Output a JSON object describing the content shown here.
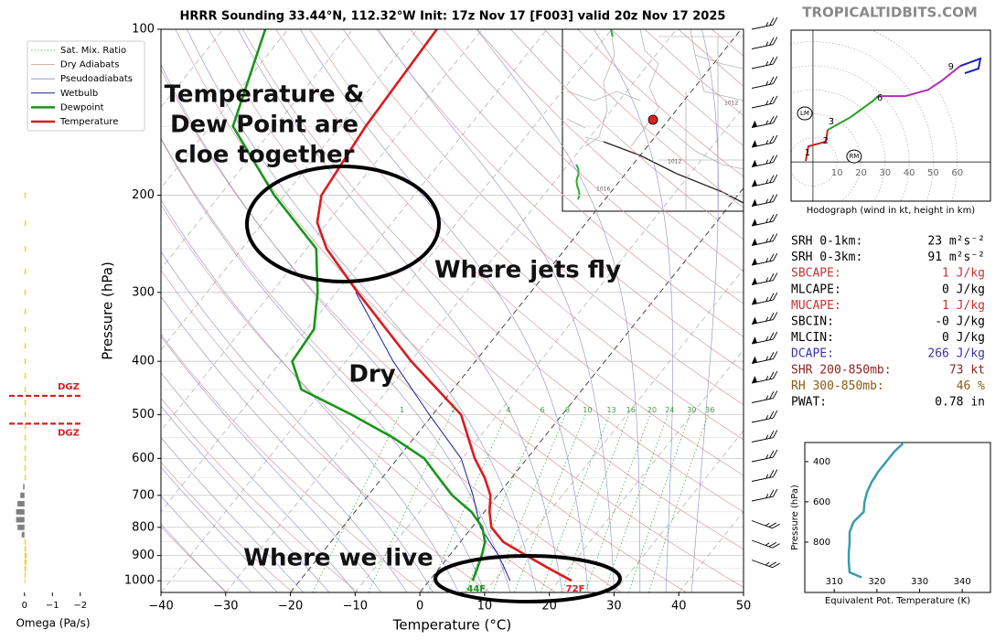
{
  "header": {
    "site": "TROPICALTIDBITS.COM"
  },
  "chart_data": [
    {
      "type": "skewt",
      "title": "HRRR Sounding 33.44°N, 112.32°W Init: 17z Nov 17 [F003] valid 20z Nov 17 2025",
      "x_label": "Temperature (°C)",
      "y_label": "Pressure (hPa)",
      "xlim": [
        -40,
        50
      ],
      "xticks": [
        {
          "value": -40,
          "label": "−40"
        },
        {
          "value": -30,
          "label": "−30"
        },
        {
          "value": -20,
          "label": "−20"
        },
        {
          "value": -10,
          "label": "−10"
        },
        0,
        10,
        20,
        30,
        40,
        50
      ],
      "ylim": [
        100,
        1050
      ],
      "log_y": true,
      "yticks": [
        100,
        200,
        300,
        400,
        500,
        600,
        700,
        800,
        900,
        1000
      ],
      "reference_lines": [
        {
          "name": "Sat. Mix. Ratio",
          "color": "#3a9a3a"
        },
        {
          "name": "Dry Adiabats",
          "color": "#c99090"
        },
        {
          "name": "Pseudoadiabats",
          "color": "#8c8cc4"
        }
      ],
      "mixing_ratios": [
        1,
        2,
        4,
        6,
        8,
        10,
        13,
        16,
        20,
        24,
        30,
        36
      ],
      "series": [
        {
          "name": "Wetbulb",
          "color": "#1c1c9c",
          "y": [
            1000,
            900,
            800,
            700,
            600,
            500,
            400,
            300
          ],
          "values": [
            12.5,
            7.6,
            1.3,
            -3.8,
            -10.2,
            -20.5,
            -32.7,
            -47
          ]
        },
        {
          "name": "Dewpoint",
          "color": "#17961a",
          "surface_label": "44F",
          "y": [
            1000,
            950,
            900,
            850,
            800,
            750,
            700,
            650,
            600,
            550,
            500,
            450,
            400,
            350,
            300,
            250,
            200,
            150,
            100
          ],
          "values": [
            6.7,
            5.9,
            5,
            3.8,
            1.6,
            -2,
            -7,
            -11.3,
            -15.9,
            -23.3,
            -32.5,
            -43.4,
            -48.3,
            -48.9,
            -52.9,
            -58.5,
            -71.6,
            -86.5,
            -93.5
          ]
        },
        {
          "name": "Temperature",
          "color": "#dc1a1e",
          "surface_label": "72F",
          "y": [
            1000,
            950,
            900,
            850,
            800,
            750,
            700,
            650,
            600,
            500,
            400,
            300,
            250,
            224,
            200,
            150,
            100
          ],
          "values": [
            22,
            17,
            11.9,
            6.6,
            3,
            0.8,
            -1.1,
            -4.2,
            -8.1,
            -15.6,
            -29.9,
            -46.7,
            -56.9,
            -61.6,
            -64.3,
            -66,
            -67
          ]
        }
      ],
      "annotations": [
        "Temperature &",
        "Dew Point are",
        "cloe together",
        "Where jets fly",
        "Dry",
        "Where we live"
      ]
    },
    {
      "type": "hodograph",
      "x_label": "Hodograph (wind in kt, height in km)",
      "xlim": [
        -9.1,
        73.8
      ],
      "ylim": [
        -16.3,
        54.8
      ],
      "xticks": [
        10,
        20,
        30,
        40,
        50,
        60
      ],
      "series": [
        {
          "color": "#d42020",
          "x": [
            -3,
            -1.9,
            5.3,
            6.1
          ],
          "values": [
            0.4,
            6.5,
            8.4,
            13.3
          ]
        },
        {
          "color": "#24a024",
          "x": [
            6.1,
            15.6,
            25.1,
            27
          ],
          "values": [
            13.3,
            18.6,
            25.5,
            27.4
          ]
        },
        {
          "color": "#b030b8",
          "x": [
            27,
            38.4,
            47.9,
            53.6,
            61.2
          ],
          "values": [
            27.4,
            27.4,
            30,
            33.8,
            39.9
          ]
        },
        {
          "color": "#2020c8",
          "x": [
            61.2,
            69.6,
            68.8,
            63.1
          ],
          "values": [
            39.9,
            43,
            38.8,
            36.9
          ]
        }
      ],
      "height_marks": [
        {
          "value": 1,
          "x": -2.3,
          "y": 3.8
        },
        {
          "value": 2,
          "x": 5.3,
          "y": 8.7
        },
        {
          "value": 3,
          "x": 7.6,
          "y": 16.7
        },
        {
          "value": 6,
          "x": 27.8,
          "y": 26.6
        },
        {
          "value": 9,
          "x": 57.4,
          "y": 39.5
        }
      ],
      "storm_motion": [
        {
          "label": "LM",
          "x": -3.4,
          "y": 20.2
        },
        {
          "label": "RM",
          "x": 17.1,
          "y": 2.3
        }
      ]
    },
    {
      "type": "profile",
      "x_label": "Equivalent Pot. Temperature (K)",
      "y_label": "Pressure (hPa)",
      "xlim": [
        303.1,
        346.6
      ],
      "ylim": [
        1050,
        305
      ],
      "xticks": [
        310,
        320,
        330,
        340
      ],
      "yticks": [
        400,
        600,
        800
      ],
      "color": "#3a9ab0",
      "y": [
        310,
        350,
        400,
        450,
        500,
        550,
        600,
        650,
        700,
        750,
        800,
        850,
        900,
        950,
        975
      ],
      "values": [
        326.1,
        324.1,
        322.2,
        320.3,
        318.8,
        317.7,
        317.1,
        316.9,
        314.5,
        313.6,
        313.6,
        313.4,
        313.4,
        313.6,
        316.4
      ]
    },
    {
      "type": "omega",
      "x_label": "Omega (Pa/s)",
      "xlim": [
        0.55,
        -2.4
      ],
      "xticks": [
        0,
        {
          "value": -1,
          "label": "−1"
        },
        {
          "value": -2,
          "label": "−2"
        }
      ],
      "ylim": [
        100,
        1050
      ],
      "log_y": true,
      "colors": {
        "rising": "#f2cf3a",
        "sinking": "#808080"
      },
      "y": [
        200,
        225,
        250,
        275,
        300,
        325,
        350,
        375,
        400,
        425,
        450,
        475,
        500,
        525,
        550,
        575,
        600,
        625,
        650,
        675,
        700,
        725,
        750,
        775,
        800,
        825,
        850,
        875,
        900,
        925,
        950,
        975,
        1000
      ],
      "values": [
        -0.05,
        -0.05,
        -0.05,
        -0.05,
        -0.05,
        -0.05,
        -0.05,
        -0.05,
        -0.05,
        -0.05,
        -0.05,
        -0.05,
        -0.05,
        -0.05,
        -0.05,
        -0.05,
        -0.05,
        -0.05,
        -0.05,
        0.05,
        0.15,
        0.25,
        0.3,
        0.3,
        0.25,
        0.1,
        -0.05,
        -0.06,
        -0.08,
        -0.08,
        -0.06,
        -0.05,
        -0.03
      ],
      "dgz_color": "#d62020",
      "dgz": [
        {
          "value": 462,
          "label": "DGZ"
        },
        {
          "value": 519,
          "label": "DGZ"
        }
      ]
    }
  ],
  "inset_map": {
    "labels": [
      "1012",
      "1012",
      "1016"
    ]
  },
  "indices": [
    {
      "label": "SRH 0-1km:",
      "value": "23 m²s⁻²",
      "color": "#000000"
    },
    {
      "label": "SRH 0-3km:",
      "value": "91 m²s⁻²",
      "color": "#000000"
    },
    {
      "label": "SBCAPE:",
      "value": "1 J/kg",
      "color": "#c83232"
    },
    {
      "label": "MLCAPE:",
      "value": "0 J/kg",
      "color": "#000000"
    },
    {
      "label": "MUCAPE:",
      "value": "1 J/kg",
      "color": "#c83232"
    },
    {
      "label": "SBCIN:",
      "value": "-0 J/kg",
      "color": "#000000"
    },
    {
      "label": "MLCIN:",
      "value": "0 J/kg",
      "color": "#000000"
    },
    {
      "label": "DCAPE:",
      "value": "266 J/kg",
      "color": "#3a32a0"
    },
    {
      "label": "SHR 200-850mb:",
      "value": "73 kt",
      "color": "#8b2323"
    },
    {
      "label": "RH 300-850mb:",
      "value": "46 %",
      "color": "#8b5a10"
    },
    {
      "label": "PWAT:",
      "value": "0.78 in",
      "color": "#000000"
    }
  ]
}
